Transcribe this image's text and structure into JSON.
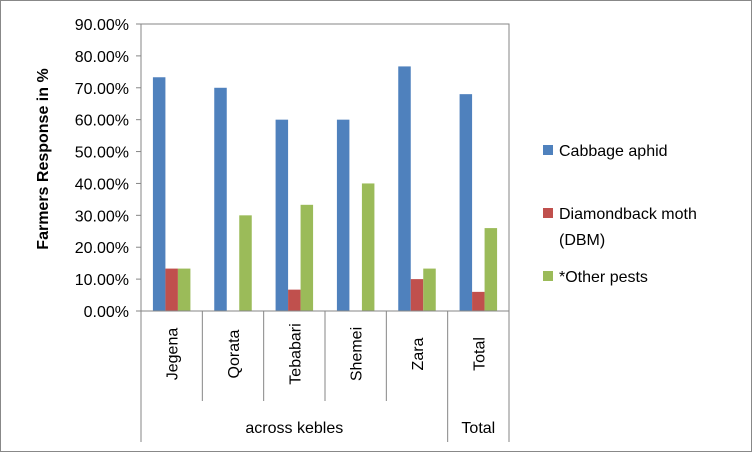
{
  "chart_data": {
    "type": "bar",
    "ylabel": "Farmers Response in %",
    "ylim": [
      0,
      0.9
    ],
    "yticks": [
      "0.00%",
      "10.00%",
      "20.00%",
      "30.00%",
      "40.00%",
      "50.00%",
      "60.00%",
      "70.00%",
      "80.00%",
      "90.00%"
    ],
    "categories": [
      "Jegena",
      "Qorata",
      "Tebabari",
      "Shemei",
      "Zara",
      "Total"
    ],
    "groups": [
      {
        "label": "across kebles",
        "categories": [
          "Jegena",
          "Qorata",
          "Tebabari",
          "Shemei",
          "Zara"
        ]
      },
      {
        "label": "Total",
        "categories": [
          "Total"
        ]
      }
    ],
    "series": [
      {
        "name": "Cabbage aphid",
        "color": "#4F81BD",
        "values": [
          0.733,
          0.7,
          0.6,
          0.6,
          0.767,
          0.68
        ]
      },
      {
        "name": "Diamondback moth (DBM)",
        "color": "#C0504D",
        "values": [
          0.133,
          0,
          0.067,
          0,
          0.1,
          0.06
        ]
      },
      {
        "name": "*Other pests",
        "color": "#9BBB59",
        "values": [
          0.133,
          0.3,
          0.333,
          0.4,
          0.133,
          0.26
        ]
      }
    ],
    "legend_position": "right",
    "grid": false
  }
}
